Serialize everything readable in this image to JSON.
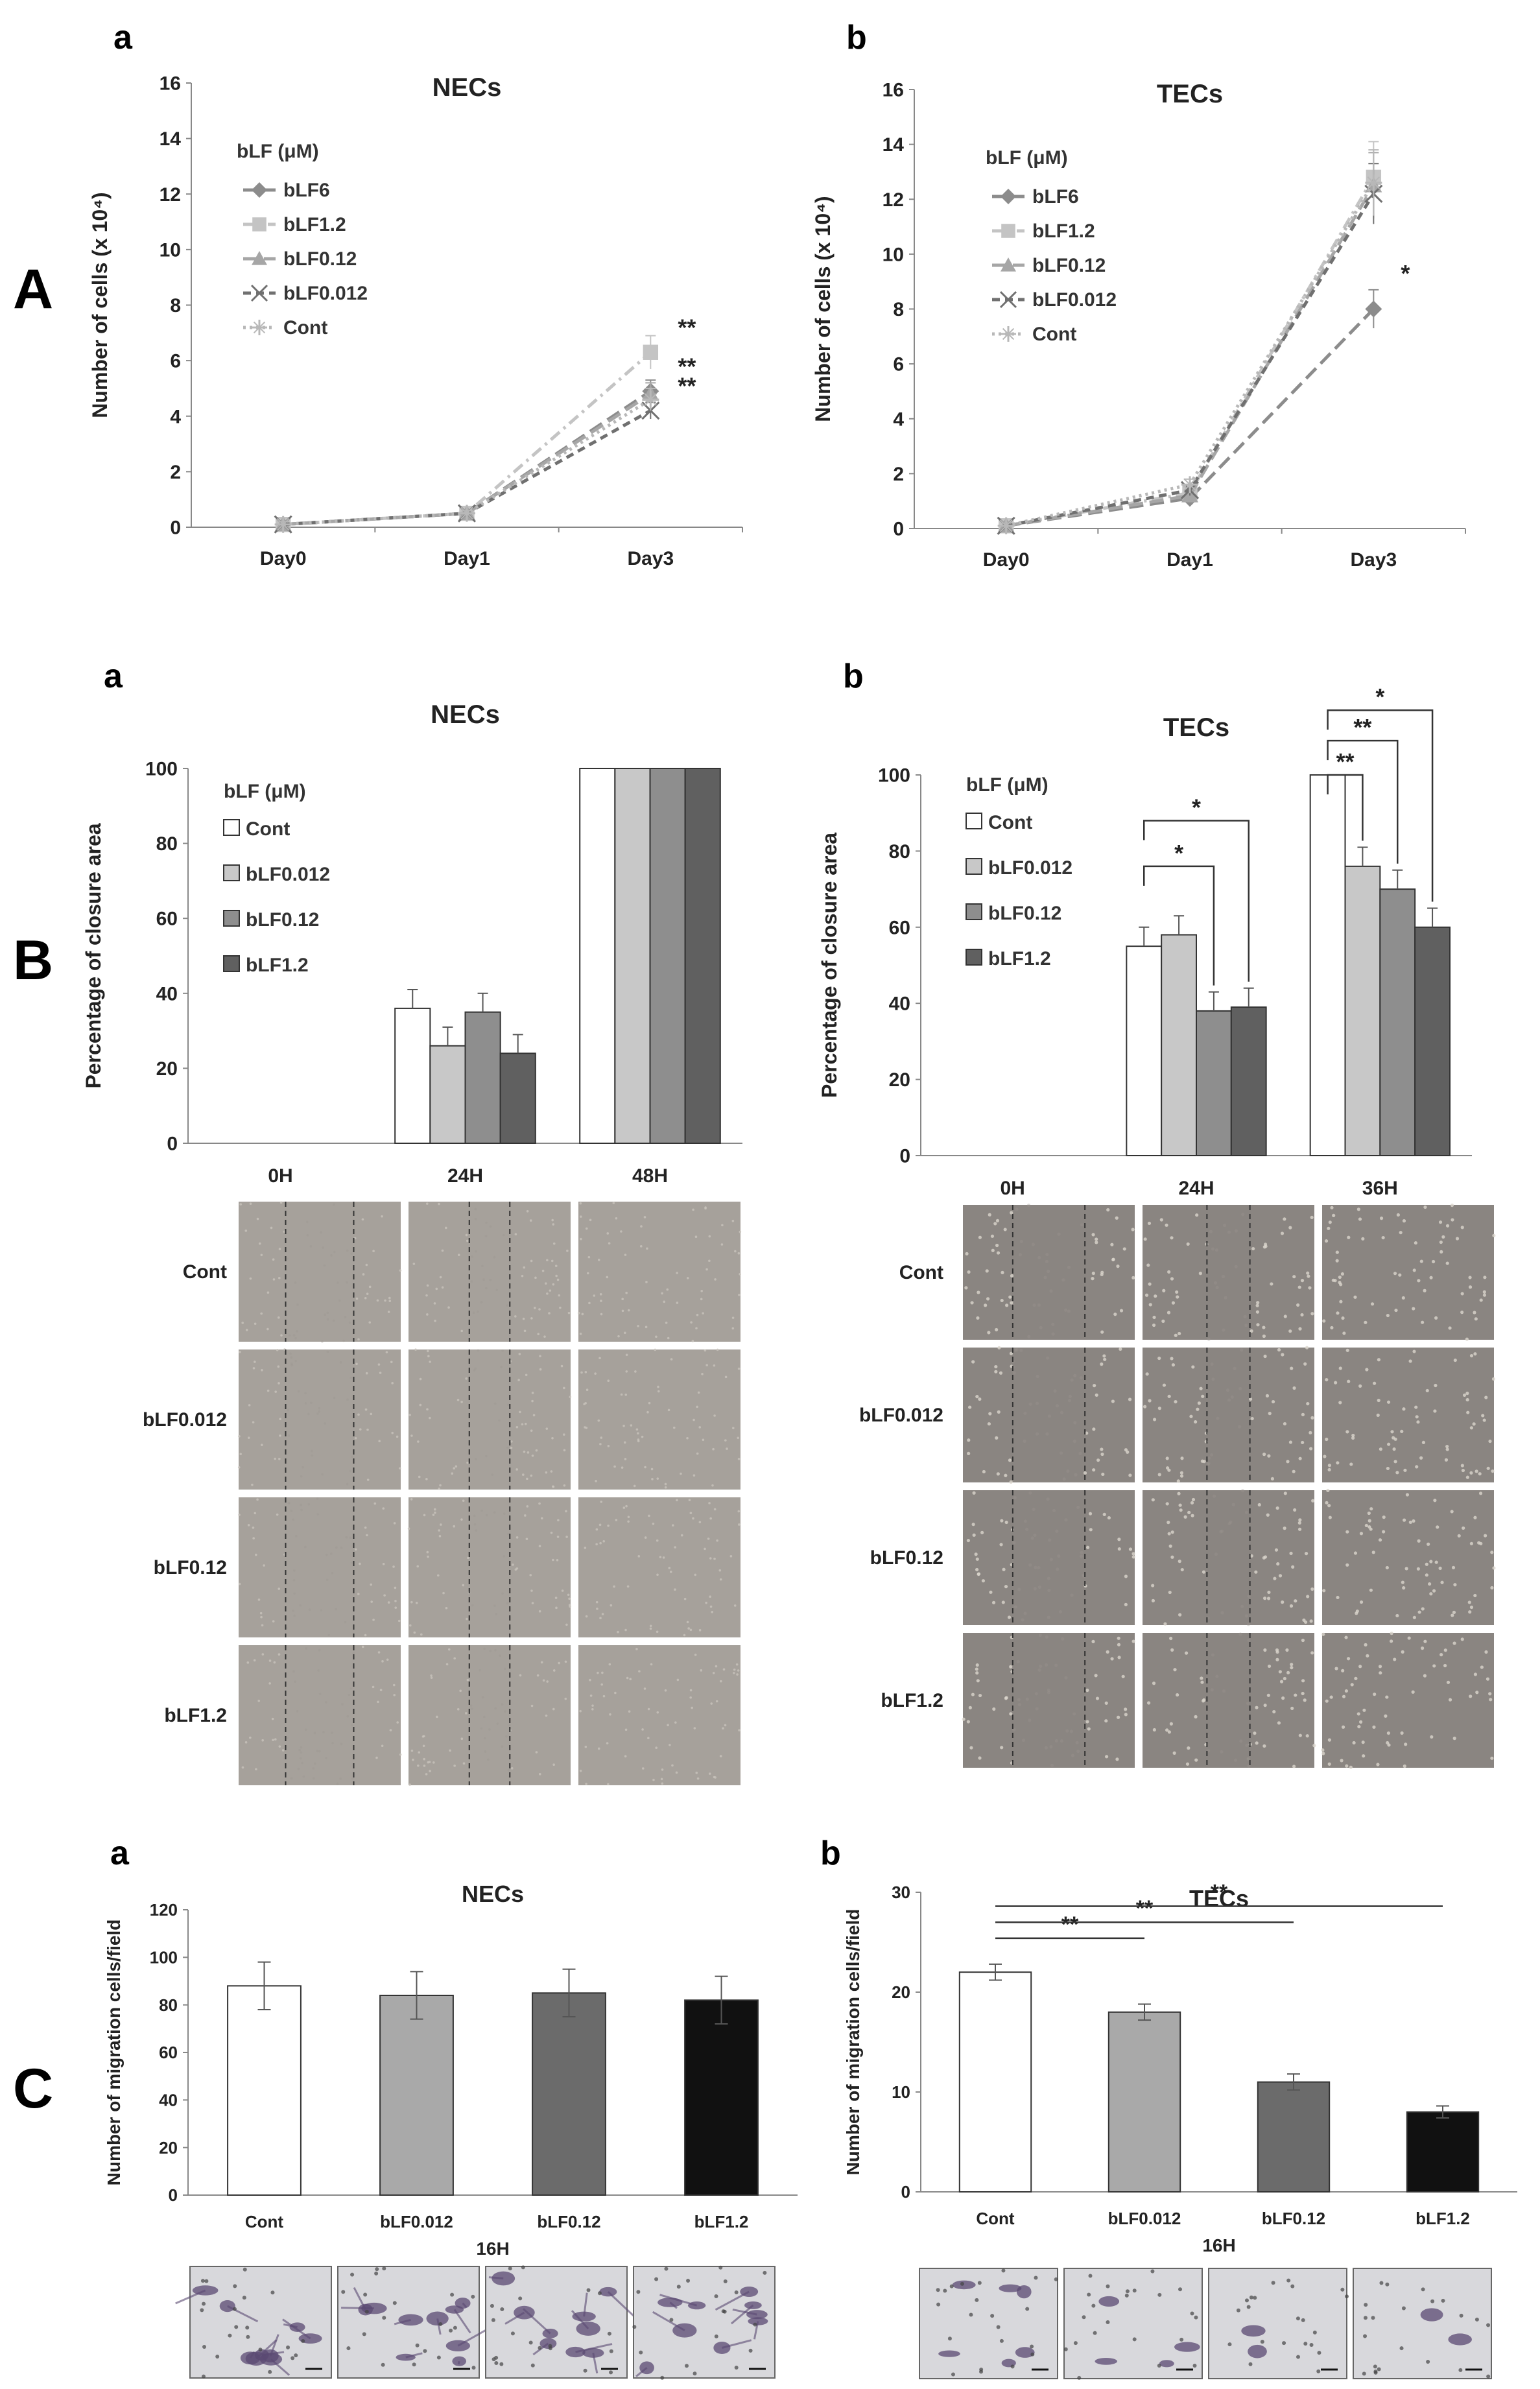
{
  "sections": {
    "A": "A",
    "B": "B",
    "C": "C",
    "sub_a": "a",
    "sub_b": "b"
  },
  "chart_data": [
    {
      "id": "A-a",
      "panel": "a",
      "section": "A",
      "type": "line",
      "title": "NECs",
      "xlabel": "",
      "ylabel": "Number of cells (x 10⁴)",
      "ylim": [
        0,
        16
      ],
      "yticks": [
        0,
        2,
        4,
        6,
        8,
        10,
        12,
        14,
        16
      ],
      "categories": [
        "Day0",
        "Day1",
        "Day3"
      ],
      "legend_title": "bLF (μM)",
      "series": [
        {
          "name": "bLF6",
          "values": [
            0.1,
            0.5,
            4.9
          ],
          "errors": [
            0.1,
            0.1,
            0.4
          ],
          "color": "#8c8c8c",
          "marker": "diamond",
          "dash": "long"
        },
        {
          "name": "bLF1.2",
          "values": [
            0.1,
            0.5,
            6.3
          ],
          "errors": [
            0.1,
            0.1,
            0.6
          ],
          "color": "#c4c4c4",
          "marker": "square",
          "dash": "dashdot"
        },
        {
          "name": "bLF0.12",
          "values": [
            0.1,
            0.5,
            4.8
          ],
          "errors": [
            0.1,
            0.1,
            0.4
          ],
          "color": "#a6a6a6",
          "marker": "triangle",
          "dash": "long"
        },
        {
          "name": "bLF0.012",
          "values": [
            0.1,
            0.5,
            4.2
          ],
          "errors": [
            0.1,
            0.1,
            0.3
          ],
          "color": "#707070",
          "marker": "x",
          "dash": "dash"
        },
        {
          "name": "Cont",
          "values": [
            0.1,
            0.5,
            4.6
          ],
          "errors": [
            0.1,
            0.1,
            0.4
          ],
          "color": "#b8b8b8",
          "marker": "star",
          "dash": "dot"
        }
      ],
      "annotations": [
        {
          "text": "**",
          "category": "Day3",
          "y": 6.9
        },
        {
          "text": "**",
          "category": "Day3",
          "y": 5.5
        },
        {
          "text": "**",
          "category": "Day3",
          "y": 4.8
        }
      ]
    },
    {
      "id": "A-b",
      "panel": "b",
      "section": "A",
      "type": "line",
      "title": "TECs",
      "xlabel": "",
      "ylabel": "Number of cells (x 10⁴)",
      "ylim": [
        0,
        16
      ],
      "yticks": [
        0,
        2,
        4,
        6,
        8,
        10,
        12,
        14,
        16
      ],
      "categories": [
        "Day0",
        "Day1",
        "Day3"
      ],
      "legend_title": "bLF (μM)",
      "series": [
        {
          "name": "bLF6",
          "values": [
            0.1,
            1.1,
            8.0
          ],
          "errors": [
            0.1,
            0.2,
            0.7
          ],
          "color": "#8c8c8c",
          "marker": "diamond",
          "dash": "long"
        },
        {
          "name": "bLF1.2",
          "values": [
            0.1,
            1.3,
            12.8
          ],
          "errors": [
            0.1,
            0.2,
            1.3
          ],
          "color": "#c4c4c4",
          "marker": "square",
          "dash": "dashdot"
        },
        {
          "name": "bLF0.12",
          "values": [
            0.1,
            1.2,
            12.5
          ],
          "errors": [
            0.1,
            0.2,
            1.2
          ],
          "color": "#a6a6a6",
          "marker": "triangle",
          "dash": "long"
        },
        {
          "name": "bLF0.012",
          "values": [
            0.1,
            1.4,
            12.2
          ],
          "errors": [
            0.1,
            0.2,
            1.1
          ],
          "color": "#707070",
          "marker": "x",
          "dash": "dash"
        },
        {
          "name": "Cont",
          "values": [
            0.1,
            1.6,
            12.6
          ],
          "errors": [
            0.1,
            0.2,
            1.2
          ],
          "color": "#b8b8b8",
          "marker": "star",
          "dash": "dot"
        }
      ],
      "annotations": [
        {
          "text": "*",
          "category": "Day3",
          "y": 9.0
        }
      ]
    },
    {
      "id": "B-a",
      "panel": "a",
      "section": "B",
      "type": "bar",
      "title": "NECs",
      "xlabel": "",
      "ylabel": "Percentage of closure area",
      "ylim": [
        0,
        100
      ],
      "yticks": [
        0,
        20,
        40,
        60,
        80,
        100
      ],
      "categories": [
        "0H",
        "24H",
        "48H"
      ],
      "legend_title": "bLF (μM)",
      "series": [
        {
          "name": "Cont",
          "values": [
            0,
            36,
            100
          ],
          "errors": [
            0,
            5,
            0
          ],
          "color": "#ffffff"
        },
        {
          "name": "bLF0.012",
          "values": [
            0,
            26,
            100
          ],
          "errors": [
            0,
            5,
            0
          ],
          "color": "#c8c8c8"
        },
        {
          "name": "bLF0.12",
          "values": [
            0,
            35,
            100
          ],
          "errors": [
            0,
            5,
            0
          ],
          "color": "#8e8e8e"
        },
        {
          "name": "bLF1.2",
          "values": [
            0,
            24,
            100
          ],
          "errors": [
            0,
            5,
            0
          ],
          "color": "#606060"
        }
      ],
      "significance": []
    },
    {
      "id": "B-b",
      "panel": "b",
      "section": "B",
      "type": "bar",
      "title": "TECs",
      "xlabel": "",
      "ylabel": "Percentage of closure area",
      "ylim": [
        0,
        100
      ],
      "yticks": [
        0,
        20,
        40,
        60,
        80,
        100
      ],
      "categories": [
        "0H",
        "24H",
        "36H"
      ],
      "legend_title": "bLF (μM)",
      "series": [
        {
          "name": "Cont",
          "values": [
            0,
            55,
            100
          ],
          "errors": [
            0,
            5,
            0
          ],
          "color": "#ffffff"
        },
        {
          "name": "bLF0.012",
          "values": [
            0,
            58,
            76
          ],
          "errors": [
            0,
            5,
            5
          ],
          "color": "#c8c8c8"
        },
        {
          "name": "bLF0.12",
          "values": [
            0,
            38,
            70
          ],
          "errors": [
            0,
            5,
            5
          ],
          "color": "#8e8e8e"
        },
        {
          "name": "bLF1.2",
          "values": [
            0,
            39,
            60
          ],
          "errors": [
            0,
            5,
            5
          ],
          "color": "#606060"
        }
      ],
      "significance": [
        {
          "text": "*",
          "category": "24H",
          "from": 0,
          "to": 3,
          "y": 88
        },
        {
          "text": "*",
          "category": "24H",
          "from": 0,
          "to": 2,
          "y": 76
        },
        {
          "text": "*",
          "category": "36H",
          "from": 0,
          "to": 3,
          "y": 117
        },
        {
          "text": "**",
          "category": "36H",
          "from": 0,
          "to": 2,
          "y": 109
        },
        {
          "text": "**",
          "category": "36H",
          "from": 0,
          "to": 1,
          "y": 100
        }
      ]
    },
    {
      "id": "C-a",
      "panel": "a",
      "section": "C",
      "type": "bar",
      "title": "NECs",
      "xlabel": "16H",
      "ylabel": "Number of migration cells/field",
      "ylim": [
        0,
        120
      ],
      "yticks": [
        0,
        20,
        40,
        60,
        80,
        100,
        120
      ],
      "categories": [
        "Cont",
        "bLF0.012",
        "bLF0.12",
        "bLF1.2"
      ],
      "values": [
        88,
        84,
        85,
        82
      ],
      "errors": [
        10,
        10,
        10,
        10
      ],
      "colors": [
        "#ffffff",
        "#a9a9a9",
        "#6b6b6b",
        "#111111"
      ],
      "significance": []
    },
    {
      "id": "C-b",
      "panel": "b",
      "section": "C",
      "type": "bar",
      "title": "TECs",
      "xlabel": "16H",
      "ylabel": "Number of migration cells/field",
      "ylim": [
        0,
        30
      ],
      "yticks": [
        0,
        10,
        20,
        30
      ],
      "categories": [
        "Cont",
        "bLF0.012",
        "bLF0.12",
        "bLF1.2"
      ],
      "values": [
        22,
        18,
        11,
        8
      ],
      "errors": [
        0.8,
        0.8,
        0.8,
        0.6
      ],
      "colors": [
        "#ffffff",
        "#a9a9a9",
        "#6b6b6b",
        "#111111"
      ],
      "significance": [
        {
          "text": "**",
          "from": 0,
          "to": 1,
          "y": 25.4
        },
        {
          "text": "**",
          "from": 0,
          "to": 2,
          "y": 27.0
        },
        {
          "text": "**",
          "from": 0,
          "to": 3,
          "y": 28.6
        }
      ]
    }
  ],
  "micrographs": {
    "B_a": {
      "columns": [
        "0H",
        "24H",
        "48H"
      ],
      "rows": [
        "Cont",
        "bLF0.012",
        "bLF0.12",
        "bLF1.2"
      ]
    },
    "B_b": {
      "columns": [
        "0H",
        "24H",
        "36H"
      ],
      "rows": [
        "Cont",
        "bLF0.012",
        "bLF0.12",
        "bLF1.2"
      ]
    }
  },
  "colors": {
    "axis": "#333333",
    "grid": "#cccccc",
    "cell_bg": "#9c968f",
    "transwell_bg": "#d8d8dc",
    "stain": "#5b4a73"
  }
}
